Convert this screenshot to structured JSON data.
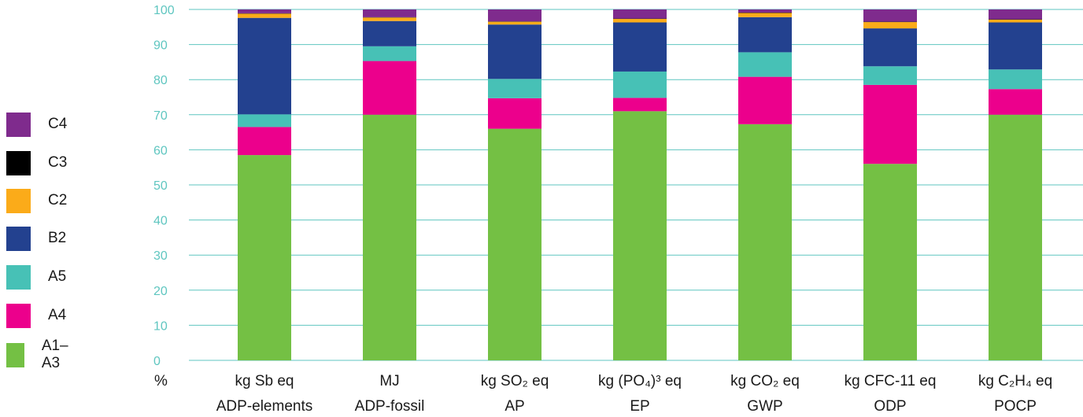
{
  "chart_data": {
    "type": "bar",
    "stacked": true,
    "ylim": [
      0,
      100
    ],
    "yticks": [
      0,
      10,
      20,
      30,
      40,
      50,
      60,
      70,
      80,
      90,
      100
    ],
    "ylabel": "%",
    "grid": true,
    "legend_position": "left",
    "categories": [
      {
        "unit": "kg Sb eq",
        "name": "ADP-elements"
      },
      {
        "unit": "MJ",
        "name": "ADP-fossil"
      },
      {
        "unit": "kg SO₂ eq",
        "name": "AP"
      },
      {
        "unit": "kg (PO₄)³ eq",
        "name": "EP"
      },
      {
        "unit": "kg CO₂ eq",
        "name": "GWP"
      },
      {
        "unit": "kg CFC-11 eq",
        "name": "ODP"
      },
      {
        "unit": "kg C₂H₄ eq",
        "name": "POCP"
      }
    ],
    "series": [
      {
        "name": "A1–A3",
        "color": "#74c044",
        "values": [
          58.5,
          70,
          66,
          71,
          67.3,
          56,
          70
        ]
      },
      {
        "name": "A4",
        "color": "#ec008c",
        "values": [
          8,
          15.3,
          8.7,
          3.8,
          13.5,
          22.5,
          7.3
        ]
      },
      {
        "name": "A5",
        "color": "#47c1b6",
        "values": [
          3.6,
          4.2,
          5.5,
          7.5,
          7,
          5.3,
          5.6
        ]
      },
      {
        "name": "B2",
        "color": "#23418f",
        "values": [
          27.5,
          7.2,
          15.5,
          14,
          10,
          10.8,
          13.4
        ]
      },
      {
        "name": "C2",
        "color": "#fbab19",
        "values": [
          1.2,
          1,
          0.8,
          1,
          1.2,
          1.8,
          0.8
        ]
      },
      {
        "name": "C3",
        "color": "#000000",
        "values": [
          0.1,
          0.1,
          0.1,
          0.1,
          0.1,
          0.1,
          0.1
        ]
      },
      {
        "name": "C4",
        "color": "#7f2b8d",
        "values": [
          1.1,
          2.2,
          3.4,
          2.6,
          0.9,
          3.5,
          2.8
        ]
      }
    ]
  },
  "legend": [
    {
      "label": "C4",
      "color": "#7f2b8d"
    },
    {
      "label": "C3",
      "color": "#000000"
    },
    {
      "label": "C2",
      "color": "#fbab19"
    },
    {
      "label": "B2",
      "color": "#23418f"
    },
    {
      "label": "A5",
      "color": "#47c1b6"
    },
    {
      "label": "A4",
      "color": "#ec008c"
    },
    {
      "label": "A1–A3",
      "color": "#74c044"
    }
  ]
}
